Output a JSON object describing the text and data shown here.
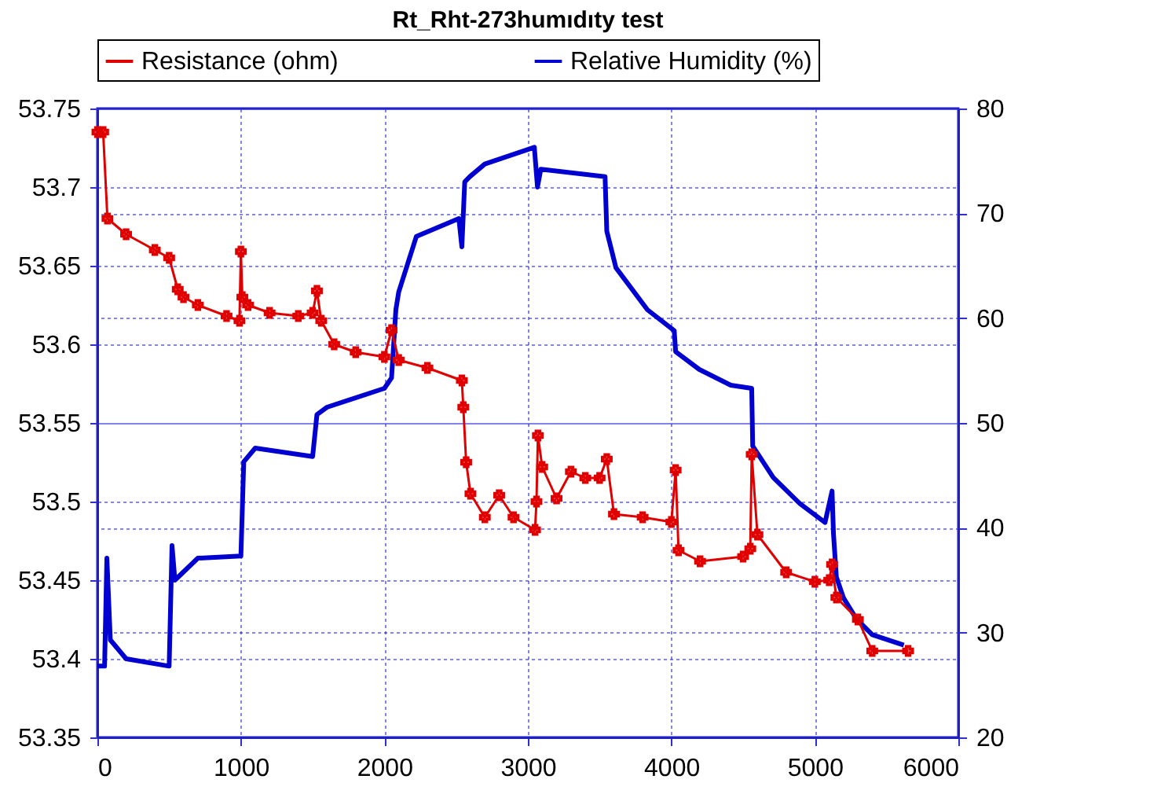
{
  "chart_data": {
    "type": "line",
    "title": "Rt_Rht-273humıdıty test",
    "xlim": [
      0,
      6000
    ],
    "xticks": [
      0,
      1000,
      2000,
      3000,
      4000,
      5000,
      6000
    ],
    "ylim": [
      53.35,
      53.75
    ],
    "yticks": [
      53.35,
      53.4,
      53.45,
      53.5,
      53.55,
      53.6,
      53.65,
      53.7,
      53.75
    ],
    "y2lim": [
      20,
      80
    ],
    "y2ticks": [
      20,
      30,
      40,
      50,
      60,
      70,
      80
    ],
    "grid": true,
    "legend": "top",
    "line_style": "solid",
    "series": [
      {
        "name": "Resistance (ohm)",
        "color": "#e00000",
        "marker": "cross",
        "x": [
          0,
          40,
          70,
          200,
          400,
          500,
          560,
          600,
          700,
          900,
          990,
          1000,
          1010,
          1050,
          1200,
          1400,
          1500,
          1530,
          1560,
          1650,
          1800,
          2000,
          2050,
          2100,
          2300,
          2540,
          2550,
          2570,
          2600,
          2700,
          2800,
          2900,
          3050,
          3060,
          3070,
          3100,
          3200,
          3300,
          3400,
          3500,
          3550,
          3600,
          3800,
          4000,
          4030,
          4050,
          4200,
          4500,
          4550,
          4560,
          4600,
          4800,
          5000,
          5100,
          5120,
          5150,
          5300,
          5400,
          5650
        ],
        "values": [
          53.735,
          53.735,
          53.68,
          53.67,
          53.66,
          53.655,
          53.635,
          53.63,
          53.625,
          53.618,
          53.615,
          53.659,
          53.63,
          53.625,
          53.62,
          53.618,
          53.62,
          53.634,
          53.615,
          53.6,
          53.595,
          53.592,
          53.609,
          53.59,
          53.585,
          53.577,
          53.56,
          53.525,
          53.505,
          53.49,
          53.504,
          53.49,
          53.482,
          53.5,
          53.542,
          53.522,
          53.502,
          53.519,
          53.515,
          53.515,
          53.527,
          53.492,
          53.49,
          53.487,
          53.52,
          53.469,
          53.462,
          53.465,
          53.47,
          53.53,
          53.479,
          53.455,
          53.449,
          53.45,
          53.46,
          53.439,
          53.425,
          53.405,
          53.405
        ]
      },
      {
        "name": "Relative Humidity (%)",
        "color": "#0000d0",
        "axis": "y2",
        "x": [
          0,
          50,
          66,
          90,
          200,
          500,
          520,
          540,
          700,
          1000,
          1020,
          1100,
          1500,
          1530,
          1600,
          2000,
          2050,
          2080,
          2100,
          2223,
          2519,
          2540,
          2560,
          2596,
          2700,
          3045,
          3067,
          3090,
          3538,
          3550,
          3614,
          3833,
          4020,
          4030,
          4195,
          4414,
          4560,
          4567,
          4710,
          4896,
          5071,
          5120,
          5130,
          5150,
          5200,
          5290,
          5400,
          5620
        ],
        "values": [
          26.8,
          26.8,
          37.1,
          29.3,
          27.5,
          26.8,
          38.3,
          35,
          37.1,
          37.3,
          46.3,
          47.6,
          46.8,
          50.8,
          51.5,
          53.3,
          54.3,
          60.8,
          62.5,
          67.8,
          69.5,
          66.8,
          73,
          73.5,
          74.7,
          76.3,
          72.5,
          74.2,
          73.5,
          68.3,
          64.8,
          60.8,
          58.8,
          56.8,
          55.1,
          53.6,
          53.3,
          47.8,
          44.8,
          42.3,
          40.5,
          43.5,
          39.4,
          35.3,
          33.3,
          31.3,
          29.8,
          28.8
        ]
      }
    ]
  }
}
